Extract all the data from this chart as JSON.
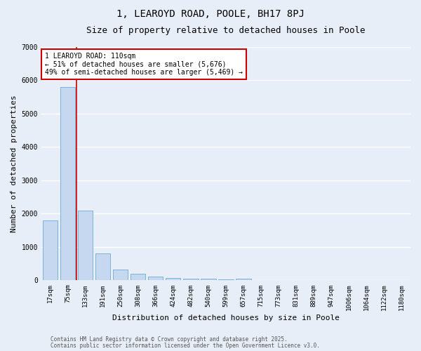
{
  "title": "1, LEAROYD ROAD, POOLE, BH17 8PJ",
  "subtitle": "Size of property relative to detached houses in Poole",
  "xlabel": "Distribution of detached houses by size in Poole",
  "ylabel": "Number of detached properties",
  "bar_labels": [
    "17sqm",
    "75sqm",
    "133sqm",
    "191sqm",
    "250sqm",
    "308sqm",
    "366sqm",
    "424sqm",
    "482sqm",
    "540sqm",
    "599sqm",
    "657sqm",
    "715sqm",
    "773sqm",
    "831sqm",
    "889sqm",
    "947sqm",
    "1006sqm",
    "1064sqm",
    "1122sqm",
    "1180sqm"
  ],
  "bar_values": [
    1800,
    5800,
    2100,
    820,
    330,
    200,
    120,
    70,
    60,
    50,
    40,
    60,
    0,
    0,
    0,
    0,
    0,
    0,
    0,
    0,
    0
  ],
  "bar_color": "#c5d8f0",
  "bar_edge_color": "#6aaad4",
  "red_line_index": 2,
  "ylim": [
    0,
    7000
  ],
  "yticks": [
    0,
    1000,
    2000,
    3000,
    4000,
    5000,
    6000,
    7000
  ],
  "annotation_text": "1 LEAROYD ROAD: 110sqm\n← 51% of detached houses are smaller (5,676)\n49% of semi-detached houses are larger (5,469) →",
  "annotation_box_color": "#ffffff",
  "annotation_box_edge_color": "#cc0000",
  "footer_line1": "Contains HM Land Registry data © Crown copyright and database right 2025.",
  "footer_line2": "Contains public sector information licensed under the Open Government Licence v3.0.",
  "background_color": "#e8eef8",
  "grid_color": "#ffffff",
  "title_fontsize": 10,
  "subtitle_fontsize": 9,
  "tick_fontsize": 6.5,
  "ylabel_fontsize": 8,
  "xlabel_fontsize": 8,
  "annotation_fontsize": 7,
  "footer_fontsize": 5.5
}
